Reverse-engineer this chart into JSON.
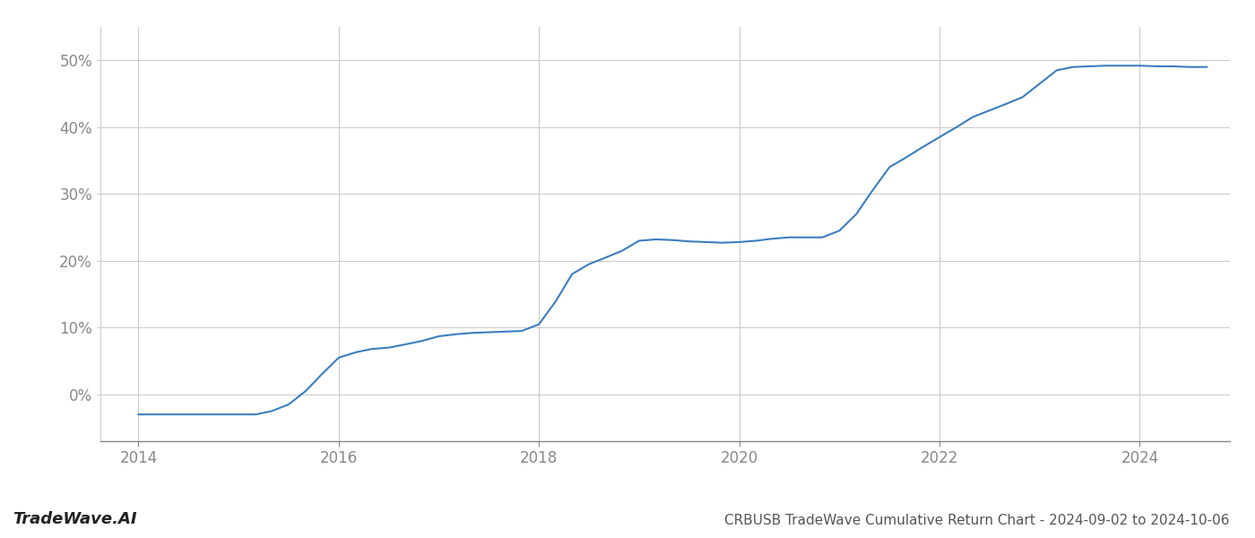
{
  "x": [
    2014.0,
    2014.17,
    2014.33,
    2014.5,
    2014.67,
    2014.83,
    2015.0,
    2015.17,
    2015.33,
    2015.5,
    2015.67,
    2015.83,
    2016.0,
    2016.17,
    2016.33,
    2016.5,
    2016.67,
    2016.83,
    2017.0,
    2017.17,
    2017.33,
    2017.5,
    2017.67,
    2017.83,
    2018.0,
    2018.17,
    2018.33,
    2018.5,
    2018.67,
    2018.83,
    2019.0,
    2019.17,
    2019.33,
    2019.5,
    2019.67,
    2019.83,
    2020.0,
    2020.17,
    2020.33,
    2020.5,
    2020.67,
    2020.83,
    2021.0,
    2021.17,
    2021.33,
    2021.5,
    2021.67,
    2021.83,
    2022.0,
    2022.17,
    2022.33,
    2022.5,
    2022.67,
    2022.83,
    2023.0,
    2023.17,
    2023.33,
    2023.5,
    2023.67,
    2023.83,
    2024.0,
    2024.17,
    2024.33,
    2024.5,
    2024.67
  ],
  "y": [
    -3.0,
    -3.0,
    -3.0,
    -3.0,
    -3.0,
    -3.0,
    -3.0,
    -3.0,
    -2.5,
    -1.5,
    0.5,
    3.0,
    5.5,
    6.3,
    6.8,
    7.0,
    7.5,
    8.0,
    8.7,
    9.0,
    9.2,
    9.3,
    9.4,
    9.5,
    10.5,
    14.0,
    18.0,
    19.5,
    20.5,
    21.5,
    23.0,
    23.2,
    23.1,
    22.9,
    22.8,
    22.7,
    22.8,
    23.0,
    23.3,
    23.5,
    23.5,
    23.5,
    24.5,
    27.0,
    30.5,
    34.0,
    35.5,
    37.0,
    38.5,
    40.0,
    41.5,
    42.5,
    43.5,
    44.5,
    46.5,
    48.5,
    49.0,
    49.1,
    49.2,
    49.2,
    49.2,
    49.1,
    49.1,
    49.0,
    49.0
  ],
  "line_color": "#3a7ebf",
  "line_width": 1.5,
  "background_color": "#ffffff",
  "grid_color": "#cccccc",
  "title": "CRBUSB TradeWave Cumulative Return Chart - 2024-09-02 to 2024-10-06",
  "watermark": "TradeWave.AI",
  "xlim": [
    2013.62,
    2024.9
  ],
  "ylim": [
    -7,
    55
  ],
  "xticks": [
    2014,
    2016,
    2018,
    2020,
    2022,
    2024
  ],
  "yticks": [
    0,
    10,
    20,
    30,
    40,
    50
  ],
  "title_fontsize": 11,
  "tick_fontsize": 12,
  "watermark_fontsize": 13
}
